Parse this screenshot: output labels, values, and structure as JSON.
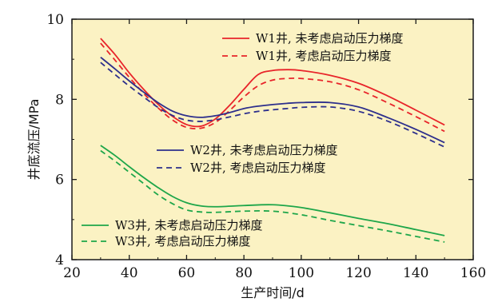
{
  "chart_data": {
    "type": "line",
    "title": "",
    "xlabel": "生产时间/d",
    "ylabel": "井底流压/MPa",
    "xlim": [
      20,
      160
    ],
    "ylim": [
      4,
      10
    ],
    "xticks": [
      20,
      40,
      60,
      80,
      100,
      120,
      140,
      160
    ],
    "yticks": [
      4,
      6,
      8,
      10
    ],
    "grid": false,
    "legend_placement": "inside, grouped near each well's curves",
    "colors": {
      "plot_background": "#fbf2c3",
      "page_background": "#ffffff",
      "axis": "#1a1a1a",
      "W1": "#e8242a",
      "W2": "#2d2f8c",
      "W3": "#1ea64a"
    },
    "series": [
      {
        "name": "W1井, 未考虑启动压力梯度",
        "well": "W1",
        "dash": false,
        "x": [
          30,
          35,
          40,
          45,
          50,
          55,
          60,
          65,
          70,
          75,
          80,
          85,
          90,
          95,
          100,
          110,
          120,
          130,
          140,
          150
        ],
        "y": [
          9.52,
          9.12,
          8.66,
          8.25,
          7.88,
          7.58,
          7.37,
          7.33,
          7.51,
          7.85,
          8.25,
          8.62,
          8.72,
          8.74,
          8.72,
          8.6,
          8.4,
          8.09,
          7.73,
          7.36
        ]
      },
      {
        "name": "W1井, 考虑启动压力梯度",
        "well": "W1",
        "dash": true,
        "x": [
          30,
          35,
          40,
          45,
          50,
          55,
          60,
          65,
          70,
          75,
          80,
          85,
          90,
          95,
          100,
          110,
          120,
          130,
          140,
          150
        ],
        "y": [
          9.4,
          8.98,
          8.55,
          8.15,
          7.79,
          7.49,
          7.3,
          7.28,
          7.42,
          7.72,
          8.06,
          8.34,
          8.48,
          8.52,
          8.52,
          8.44,
          8.24,
          7.92,
          7.57,
          7.2
        ]
      },
      {
        "name": "W2井, 未考虑启动压力梯度",
        "well": "W2",
        "dash": false,
        "x": [
          30,
          35,
          40,
          45,
          50,
          55,
          60,
          65,
          70,
          75,
          80,
          85,
          90,
          95,
          100,
          110,
          120,
          130,
          140,
          150
        ],
        "y": [
          9.05,
          8.76,
          8.46,
          8.18,
          7.92,
          7.71,
          7.59,
          7.55,
          7.59,
          7.67,
          7.77,
          7.83,
          7.87,
          7.9,
          7.92,
          7.92,
          7.81,
          7.55,
          7.25,
          6.92
        ]
      },
      {
        "name": "W2井, 考虑启动压力梯度",
        "well": "W2",
        "dash": true,
        "x": [
          30,
          35,
          40,
          45,
          50,
          55,
          60,
          65,
          70,
          75,
          80,
          85,
          90,
          95,
          100,
          110,
          120,
          130,
          140,
          150
        ],
        "y": [
          8.92,
          8.62,
          8.33,
          8.06,
          7.8,
          7.6,
          7.48,
          7.45,
          7.49,
          7.56,
          7.64,
          7.7,
          7.74,
          7.77,
          7.8,
          7.81,
          7.7,
          7.46,
          7.15,
          6.81
        ]
      },
      {
        "name": "W3井, 未考虑启动压力梯度",
        "well": "W3",
        "dash": false,
        "x": [
          30,
          35,
          40,
          45,
          50,
          55,
          60,
          65,
          70,
          80,
          90,
          100,
          110,
          120,
          130,
          140,
          150
        ],
        "y": [
          6.85,
          6.6,
          6.32,
          6.05,
          5.8,
          5.58,
          5.42,
          5.34,
          5.32,
          5.35,
          5.37,
          5.3,
          5.17,
          5.03,
          4.9,
          4.75,
          4.6
        ]
      },
      {
        "name": "W3井, 考虑启动压力梯度",
        "well": "W3",
        "dash": true,
        "x": [
          30,
          35,
          40,
          45,
          50,
          55,
          60,
          65,
          70,
          80,
          90,
          100,
          110,
          120,
          130,
          140,
          150
        ],
        "y": [
          6.72,
          6.46,
          6.18,
          5.9,
          5.62,
          5.4,
          5.24,
          5.19,
          5.18,
          5.21,
          5.21,
          5.12,
          4.98,
          4.85,
          4.72,
          4.58,
          4.44
        ]
      }
    ]
  }
}
